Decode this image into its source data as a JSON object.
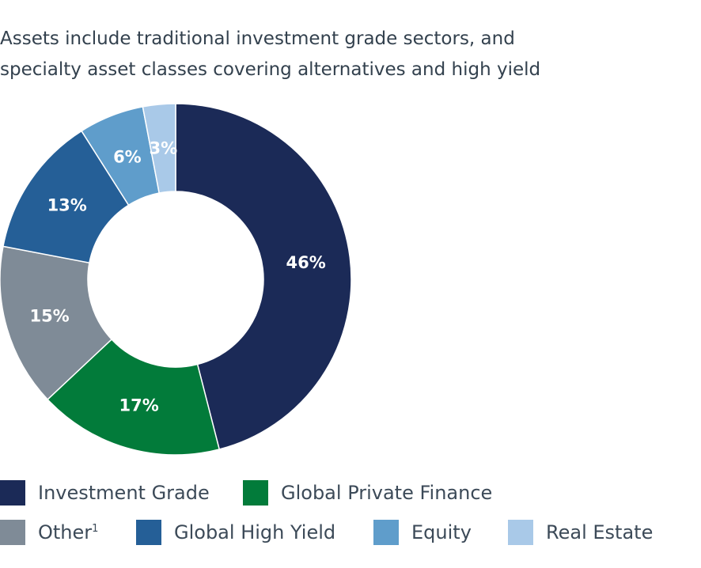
{
  "chart_data": {
    "type": "pie",
    "variant": "donut",
    "title": "Assets include traditional investment grade sectors, and specialty asset classes covering alternatives and high yield",
    "title_lines": [
      "Assets include traditional investment grade sectors, and",
      "specialty asset classes covering alternatives and high yield"
    ],
    "unit": "%",
    "slices": [
      {
        "name": "Investment Grade",
        "value": 46,
        "label": "46%",
        "color": "#1b2a57"
      },
      {
        "name": "Global Private Finance",
        "value": 17,
        "label": "17%",
        "color": "#027b3a"
      },
      {
        "name": "Other",
        "value": 15,
        "label": "15%",
        "color": "#7f8b97"
      },
      {
        "name": "Global High Yield",
        "value": 13,
        "label": "13%",
        "color": "#255f97"
      },
      {
        "name": "Equity",
        "value": 6,
        "label": "6%",
        "color": "#5f9dcb"
      },
      {
        "name": "Real Estate",
        "value": 3,
        "label": "3%",
        "color": "#a9c9e8"
      }
    ],
    "legend": {
      "placement": "bottom",
      "items": [
        {
          "label": "Investment Grade",
          "sup": "",
          "color": "#1b2a57"
        },
        {
          "label": "Global Private Finance",
          "sup": "",
          "color": "#027b3a"
        },
        {
          "label": "Other",
          "sup": "1",
          "color": "#7f8b97"
        },
        {
          "label": "Global High Yield",
          "sup": "",
          "color": "#255f97"
        },
        {
          "label": "Equity",
          "sup": "",
          "color": "#5f9dcb"
        },
        {
          "label": "Real Estate",
          "sup": "",
          "color": "#a9c9e8"
        }
      ]
    }
  }
}
